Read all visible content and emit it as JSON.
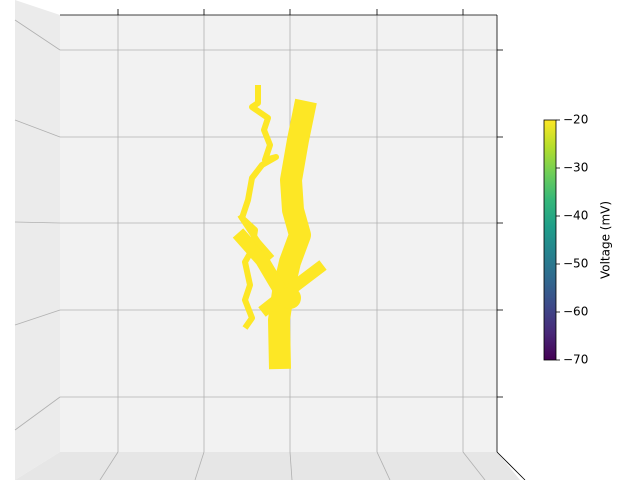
{
  "chart_data": {
    "type": "morphology",
    "colormap": "viridis",
    "colorbar_label": "Voltage (mV)",
    "clim": [
      -70,
      -20
    ],
    "cticks": [
      {
        "value": -70,
        "label": "−70"
      },
      {
        "value": -60,
        "label": "−60"
      },
      {
        "value": -50,
        "label": "−50"
      },
      {
        "value": -40,
        "label": "−40"
      },
      {
        "value": -30,
        "label": "−30"
      },
      {
        "value": -20,
        "label": "−20"
      }
    ]
  }
}
